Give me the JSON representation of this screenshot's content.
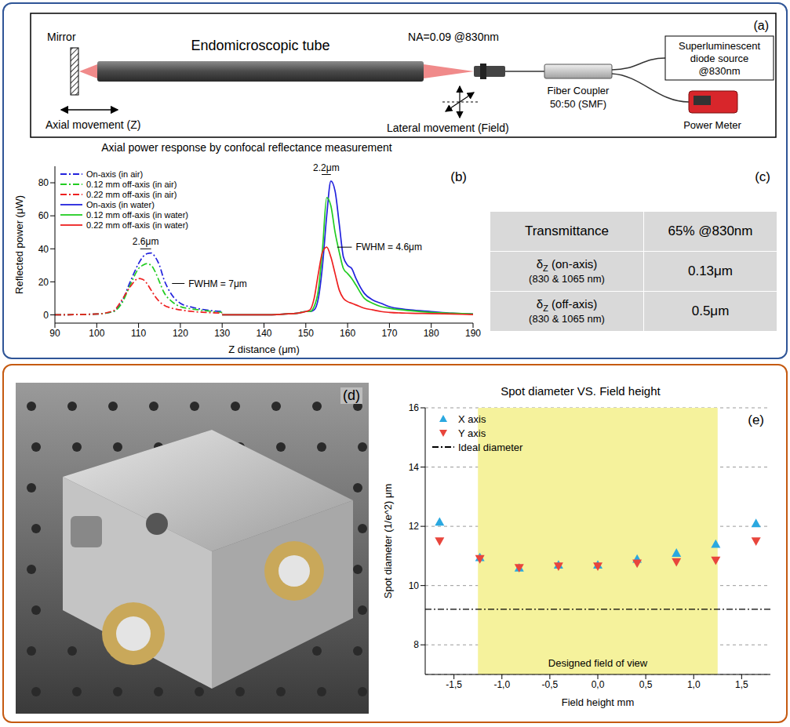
{
  "panel_a": {
    "label": "(a)",
    "mirror": "Mirror",
    "tube": "Endomicroscopic tube",
    "na": "NA=0.09 @830nm",
    "axial": "Axial movement (Z)",
    "lateral": "Lateral movement (Field)",
    "coupler": [
      "Fiber Coupler",
      "50:50 (SMF)"
    ],
    "source": [
      "Superluminescent",
      "diode source",
      "@830nm"
    ],
    "power_meter": "Power Meter"
  },
  "chart_data": [
    {
      "type": "line",
      "panel_label": "(b)",
      "title": "Axial power response by confocal reflectance measurement",
      "x_label": "Z distance (μm)",
      "y_label": "Reflected power (μW)",
      "xlim": [
        90,
        190
      ],
      "xticks": [
        90,
        100,
        110,
        120,
        130,
        140,
        150,
        160,
        170,
        180,
        190
      ],
      "ylim": [
        -5,
        90
      ],
      "yticks": [
        0,
        20,
        40,
        60,
        80
      ],
      "grid": false,
      "legend": "upper left",
      "series": [
        {
          "name": "On-axis (in air)",
          "color": "#2222dd",
          "line_style": "dashdot",
          "x": [
            90,
            100,
            104,
            106,
            108,
            110,
            111,
            112,
            113,
            114,
            115,
            116,
            118,
            120,
            123,
            126,
            130
          ],
          "values": [
            0,
            0.5,
            2,
            8,
            20,
            31,
            35,
            37,
            37.5,
            35,
            30,
            22,
            12,
            7,
            4.5,
            3,
            2
          ]
        },
        {
          "name": "0.12 mm off-axis (in air)",
          "color": "#22cc22",
          "line_style": "dashdot",
          "x": [
            90,
            100,
            104,
            106,
            108,
            110,
            111,
            112,
            113,
            114,
            115,
            116,
            118,
            120,
            123,
            126,
            130
          ],
          "values": [
            0,
            0.5,
            2,
            7,
            18,
            28,
            30,
            31,
            30,
            26,
            20,
            14,
            8,
            5,
            3.5,
            2.5,
            1.5
          ]
        },
        {
          "name": "0.22 mm off-axis (in air)",
          "color": "#ee2020",
          "line_style": "dashdot",
          "x": [
            90,
            100,
            104,
            106,
            108,
            110,
            111,
            112,
            113,
            114,
            115,
            116,
            118,
            120,
            123,
            126,
            130
          ],
          "values": [
            0,
            0.5,
            2.5,
            9,
            17,
            22,
            21.5,
            19,
            15,
            11,
            8,
            6,
            4,
            3,
            2,
            1.5,
            1
          ]
        },
        {
          "name": "On-axis (in water)",
          "color": "#2222dd",
          "line_style": "solid",
          "x": [
            130,
            140,
            145,
            148,
            150,
            151,
            152,
            153,
            154,
            155,
            156,
            157,
            158,
            159,
            160,
            161,
            162,
            164,
            166,
            168,
            170,
            175,
            180,
            185,
            190
          ],
          "values": [
            0,
            0,
            0.5,
            1,
            2,
            2,
            3,
            10,
            30,
            60,
            81,
            75,
            55,
            35,
            30,
            28,
            22,
            13,
            9,
            7,
            5,
            3,
            2,
            1,
            0.5
          ]
        },
        {
          "name": "0.12 mm off-axis (in water)",
          "color": "#22cc22",
          "line_style": "solid",
          "x": [
            130,
            140,
            145,
            148,
            150,
            151,
            152,
            153,
            154,
            155,
            156,
            157,
            158,
            159,
            160,
            161,
            162,
            164,
            166,
            168,
            170,
            175,
            180,
            185,
            190
          ],
          "values": [
            0,
            0,
            0.5,
            1,
            2,
            2,
            5,
            15,
            40,
            71,
            66,
            50,
            38,
            28,
            25,
            22,
            18,
            10,
            7,
            5,
            4,
            2.5,
            1.5,
            1,
            0.5
          ]
        },
        {
          "name": "0.22 mm off-axis (in water)",
          "color": "#ee2020",
          "line_style": "solid",
          "x": [
            130,
            140,
            145,
            148,
            150,
            151,
            152,
            153,
            154,
            155,
            156,
            157,
            158,
            159,
            160,
            161,
            162,
            164,
            166,
            168,
            170,
            175,
            180,
            185,
            190
          ],
          "values": [
            0,
            0,
            0.5,
            1,
            2,
            3,
            10,
            25,
            38,
            41,
            35,
            25,
            15,
            10,
            8,
            7,
            6,
            4,
            3,
            2,
            1.5,
            1,
            0.8,
            0.5,
            0.2
          ]
        }
      ],
      "annotations": [
        {
          "text": "2.6μm",
          "x": [
            110.4,
            113
          ],
          "y": 40
        },
        {
          "text": "FWHM = 7μm",
          "x": [
            118,
            121
          ],
          "y": 19
        },
        {
          "text": "2.2μm",
          "x": [
            153.8,
            156
          ],
          "y": 85
        },
        {
          "text": "FWHM = 4.6μm",
          "x": [
            157.5,
            161
          ],
          "y": 41
        }
      ]
    },
    {
      "type": "scatter",
      "panel_label": "(e)",
      "title": "Spot diameter VS. Field height",
      "x_label": "Field height mm",
      "y_label": "Spot diameter (1/e^2) μm",
      "xlim": [
        -1.8,
        1.8
      ],
      "xticks": [
        {
          "value": -1.5,
          "label": "-1,5"
        },
        {
          "value": -1,
          "label": "-1,0"
        },
        {
          "value": -0.5,
          "label": "-0,5"
        },
        {
          "value": 0,
          "label": "0,0"
        },
        {
          "value": 0.5,
          "label": "0,5"
        },
        {
          "value": 1,
          "label": "1,0"
        },
        {
          "value": 1.5,
          "label": "1,5"
        }
      ],
      "ylim": [
        7,
        16
      ],
      "yticks": [
        8,
        10,
        12,
        14,
        16
      ],
      "grid": true,
      "legend": "upper left",
      "shaded_region": {
        "x": [
          -1.25,
          1.25
        ],
        "label": "Designed field of view",
        "color": "#f5f29c"
      },
      "series": [
        {
          "name": "X axis",
          "color": "#2aa8e0",
          "marker": "triangle-up",
          "x": [
            -1.65,
            -1.23,
            -0.82,
            -0.41,
            0,
            0.41,
            0.82,
            1.23,
            1.65
          ],
          "values": [
            12.15,
            10.95,
            10.6,
            10.7,
            10.7,
            10.9,
            11.1,
            11.4,
            12.1
          ]
        },
        {
          "name": "Y axis",
          "color": "#e8453c",
          "marker": "triangle-down",
          "x": [
            -1.65,
            -1.23,
            -0.82,
            -0.41,
            0,
            0.41,
            0.82,
            1.23,
            1.65
          ],
          "values": [
            11.5,
            10.9,
            10.6,
            10.65,
            10.65,
            10.75,
            10.8,
            10.85,
            11.5
          ]
        },
        {
          "name": "Ideal diameter",
          "type": "line",
          "color": "#000000",
          "line_style": "dashdot",
          "x": [
            -1.8,
            1.8
          ],
          "values": [
            9.2,
            9.2
          ]
        }
      ]
    }
  ],
  "table": {
    "label": "(c)",
    "rows": [
      {
        "label": "Transmittance",
        "value": "65% @830nm"
      },
      {
        "symbol": "δ",
        "subscript": "Z",
        "label": "(on-axis)",
        "note": "(830 & 1065 nm)",
        "value": "0.13μm"
      },
      {
        "symbol": "δ",
        "subscript": "Z",
        "label": "(off-axis)",
        "note": "(830 & 1065 nm)",
        "value": "0.5μm"
      }
    ]
  },
  "photo": {
    "label": "(d)"
  }
}
